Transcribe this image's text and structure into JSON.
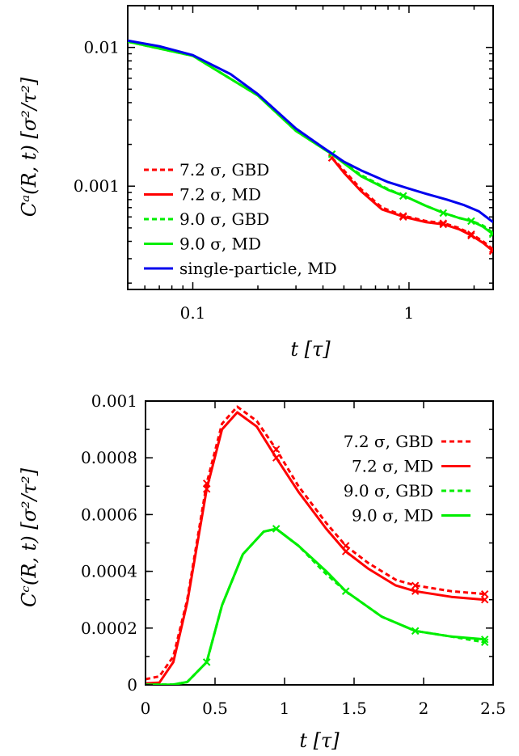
{
  "chart_data": [
    {
      "type": "line",
      "xlabel": "t [τ]",
      "ylabel": "Cᵃ(R, t) [σ²/τ²]",
      "xscale": "log",
      "yscale": "log",
      "xlim": [
        0.05,
        2.45
      ],
      "ylim": [
        0.00018,
        0.02
      ],
      "x_ticks": [
        {
          "value": 0.1,
          "label": "0.1"
        },
        {
          "value": 1,
          "label": "1"
        }
      ],
      "y_ticks": [
        {
          "value": 0.001,
          "label": "0.001"
        },
        {
          "value": 0.01,
          "label": "0.01"
        }
      ],
      "legend_position": "bottom-left",
      "series": [
        {
          "name": "7.2 σ, GBD",
          "color": "#ff0000",
          "dash": "dashed",
          "points": [
            [
              0.44,
              0.0016
            ],
            [
              0.5,
              0.0013
            ],
            [
              0.6,
              0.00095
            ],
            [
              0.75,
              0.0007
            ],
            [
              0.95,
              0.00061
            ],
            [
              1.2,
              0.00056
            ],
            [
              1.45,
              0.00054
            ],
            [
              1.7,
              0.0005
            ],
            [
              1.95,
              0.00045
            ],
            [
              2.2,
              0.0004
            ],
            [
              2.45,
              0.00035
            ]
          ],
          "markers": [
            [
              0.44,
              0.0016
            ],
            [
              0.94,
              0.00061
            ],
            [
              1.44,
              0.00054
            ],
            [
              1.94,
              0.00045
            ],
            [
              2.44,
              0.00035
            ]
          ]
        },
        {
          "name": "7.2 σ, MD",
          "color": "#ff0000",
          "dash": "solid",
          "points": [
            [
              0.44,
              0.0016
            ],
            [
              0.5,
              0.00125
            ],
            [
              0.6,
              0.00092
            ],
            [
              0.75,
              0.00068
            ],
            [
              0.95,
              0.0006
            ],
            [
              1.2,
              0.00055
            ],
            [
              1.45,
              0.00053
            ],
            [
              1.7,
              0.00049
            ],
            [
              1.95,
              0.00044
            ],
            [
              2.2,
              0.00039
            ],
            [
              2.45,
              0.00034
            ]
          ],
          "markers": [
            [
              0.44,
              0.0016
            ],
            [
              0.94,
              0.0006
            ],
            [
              1.44,
              0.00053
            ],
            [
              1.94,
              0.00044
            ],
            [
              2.44,
              0.00034
            ]
          ]
        },
        {
          "name": "9.0 σ, GBD",
          "color": "#00ee00",
          "dash": "dashed",
          "points": [
            [
              0.05,
              0.011
            ],
            [
              0.1,
              0.0087
            ],
            [
              0.2,
              0.0045
            ],
            [
              0.3,
              0.0025
            ],
            [
              0.44,
              0.0017
            ],
            [
              0.6,
              0.0012
            ],
            [
              0.8,
              0.00095
            ],
            [
              0.95,
              0.00085
            ],
            [
              1.2,
              0.00072
            ],
            [
              1.45,
              0.00064
            ],
            [
              1.7,
              0.00059
            ],
            [
              1.95,
              0.00056
            ],
            [
              2.2,
              0.00052
            ],
            [
              2.45,
              0.00046
            ]
          ],
          "markers": [
            [
              0.44,
              0.0017
            ],
            [
              0.94,
              0.00085
            ],
            [
              1.44,
              0.00064
            ],
            [
              1.94,
              0.00056
            ],
            [
              2.44,
              0.00046
            ]
          ]
        },
        {
          "name": "9.0 σ, MD",
          "color": "#00ee00",
          "dash": "solid",
          "points": [
            [
              0.05,
              0.011
            ],
            [
              0.1,
              0.0087
            ],
            [
              0.2,
              0.0045
            ],
            [
              0.3,
              0.0025
            ],
            [
              0.44,
              0.0017
            ],
            [
              0.6,
              0.00118
            ],
            [
              0.8,
              0.00094
            ],
            [
              0.95,
              0.00085
            ],
            [
              1.2,
              0.00072
            ],
            [
              1.45,
              0.00064
            ],
            [
              1.7,
              0.00059
            ],
            [
              1.95,
              0.00056
            ],
            [
              2.2,
              0.00051
            ],
            [
              2.45,
              0.00045
            ]
          ],
          "markers": [
            [
              0.44,
              0.0017
            ],
            [
              0.94,
              0.00085
            ],
            [
              1.44,
              0.00064
            ],
            [
              1.94,
              0.00056
            ],
            [
              2.44,
              0.00045
            ]
          ]
        },
        {
          "name": "single-particle, MD",
          "color": "#0000ee",
          "dash": "solid",
          "points": [
            [
              0.05,
              0.0112
            ],
            [
              0.07,
              0.0102
            ],
            [
              0.1,
              0.0088
            ],
            [
              0.15,
              0.0064
            ],
            [
              0.2,
              0.0046
            ],
            [
              0.3,
              0.0026
            ],
            [
              0.4,
              0.0019
            ],
            [
              0.5,
              0.0015
            ],
            [
              0.6,
              0.0013
            ],
            [
              0.8,
              0.00107
            ],
            [
              1.0,
              0.00096
            ],
            [
              1.2,
              0.00088
            ],
            [
              1.5,
              0.0008
            ],
            [
              1.8,
              0.00073
            ],
            [
              2.1,
              0.00066
            ],
            [
              2.45,
              0.00055
            ]
          ],
          "markers": []
        }
      ]
    },
    {
      "type": "line",
      "xlabel": "t [τ]",
      "ylabel": "Cᶜ(R, t) [σ²/τ²]",
      "xlim": [
        0,
        2.5
      ],
      "ylim": [
        0,
        0.001
      ],
      "x_ticks": [
        {
          "value": 0,
          "label": "0"
        },
        {
          "value": 0.5,
          "label": "0.5"
        },
        {
          "value": 1,
          "label": "1"
        },
        {
          "value": 1.5,
          "label": "1.5"
        },
        {
          "value": 2,
          "label": "2"
        },
        {
          "value": 2.5,
          "label": "2.5"
        }
      ],
      "y_ticks": [
        {
          "value": 0,
          "label": "0"
        },
        {
          "value": 0.0002,
          "label": "0.0002"
        },
        {
          "value": 0.0004,
          "label": "0.0004"
        },
        {
          "value": 0.0006,
          "label": "0.0006"
        },
        {
          "value": 0.0008,
          "label": "0.0008"
        },
        {
          "value": 0.001,
          "label": "0.001"
        }
      ],
      "legend_position": "top-right",
      "series": [
        {
          "name": "7.2 σ, GBD",
          "color": "#ff0000",
          "dash": "dashed",
          "points": [
            [
              0,
              2e-05
            ],
            [
              0.1,
              3e-05
            ],
            [
              0.2,
              0.0001
            ],
            [
              0.3,
              0.0003
            ],
            [
              0.44,
              0.00071
            ],
            [
              0.55,
              0.00092
            ],
            [
              0.66,
              0.00098
            ],
            [
              0.8,
              0.00093
            ],
            [
              0.94,
              0.00083
            ],
            [
              1.1,
              0.0007
            ],
            [
              1.3,
              0.00057
            ],
            [
              1.44,
              0.00049
            ],
            [
              1.6,
              0.00043
            ],
            [
              1.8,
              0.00037
            ],
            [
              1.94,
              0.00035
            ],
            [
              2.2,
              0.00033
            ],
            [
              2.44,
              0.00032
            ]
          ],
          "markers": [
            [
              0.44,
              0.00071
            ],
            [
              0.94,
              0.00083
            ],
            [
              1.44,
              0.00049
            ],
            [
              1.94,
              0.00035
            ],
            [
              2.44,
              0.00032
            ]
          ]
        },
        {
          "name": "7.2 σ, MD",
          "color": "#ff0000",
          "dash": "solid",
          "points": [
            [
              0,
              5e-06
            ],
            [
              0.1,
              8e-06
            ],
            [
              0.2,
              8e-05
            ],
            [
              0.3,
              0.00029
            ],
            [
              0.44,
              0.00069
            ],
            [
              0.55,
              0.0009
            ],
            [
              0.66,
              0.00096
            ],
            [
              0.8,
              0.00091
            ],
            [
              0.94,
              0.0008
            ],
            [
              1.1,
              0.00068
            ],
            [
              1.3,
              0.00055
            ],
            [
              1.44,
              0.00047
            ],
            [
              1.6,
              0.00041
            ],
            [
              1.8,
              0.00035
            ],
            [
              1.94,
              0.00033
            ],
            [
              2.2,
              0.00031
            ],
            [
              2.44,
              0.0003
            ]
          ],
          "markers": [
            [
              0.44,
              0.00069
            ],
            [
              0.94,
              0.0008
            ],
            [
              1.44,
              0.00047
            ],
            [
              1.94,
              0.00033
            ],
            [
              2.44,
              0.0003
            ]
          ]
        },
        {
          "name": "9.0 σ, GBD",
          "color": "#00ee00",
          "dash": "dashed",
          "points": [
            [
              0,
              5e-07
            ],
            [
              0.2,
              1e-06
            ],
            [
              0.3,
              1e-05
            ],
            [
              0.44,
              8e-05
            ],
            [
              0.55,
              0.00028
            ],
            [
              0.7,
              0.00046
            ],
            [
              0.85,
              0.00054
            ],
            [
              0.94,
              0.00055
            ],
            [
              1.1,
              0.00049
            ],
            [
              1.3,
              0.00039
            ],
            [
              1.44,
              0.00033
            ],
            [
              1.7,
              0.00024
            ],
            [
              1.94,
              0.00019
            ],
            [
              2.2,
              0.00017
            ],
            [
              2.44,
              0.00015
            ]
          ],
          "markers": [
            [
              0.44,
              8e-05
            ],
            [
              0.94,
              0.00055
            ],
            [
              1.44,
              0.00033
            ],
            [
              1.94,
              0.00019
            ],
            [
              2.44,
              0.00015
            ]
          ]
        },
        {
          "name": "9.0 σ, MD",
          "color": "#00ee00",
          "dash": "solid",
          "points": [
            [
              0,
              5e-07
            ],
            [
              0.2,
              1e-06
            ],
            [
              0.3,
              1e-05
            ],
            [
              0.44,
              8e-05
            ],
            [
              0.55,
              0.00028
            ],
            [
              0.7,
              0.00046
            ],
            [
              0.85,
              0.00054
            ],
            [
              0.94,
              0.00055
            ],
            [
              1.1,
              0.00049
            ],
            [
              1.3,
              0.0004
            ],
            [
              1.44,
              0.00033
            ],
            [
              1.7,
              0.00024
            ],
            [
              1.94,
              0.00019
            ],
            [
              2.2,
              0.00017
            ],
            [
              2.44,
              0.00016
            ]
          ],
          "markers": [
            [
              0.44,
              8e-05
            ],
            [
              0.94,
              0.00055
            ],
            [
              1.44,
              0.00033
            ],
            [
              1.94,
              0.00019
            ],
            [
              2.44,
              0.00016
            ]
          ]
        }
      ]
    }
  ]
}
